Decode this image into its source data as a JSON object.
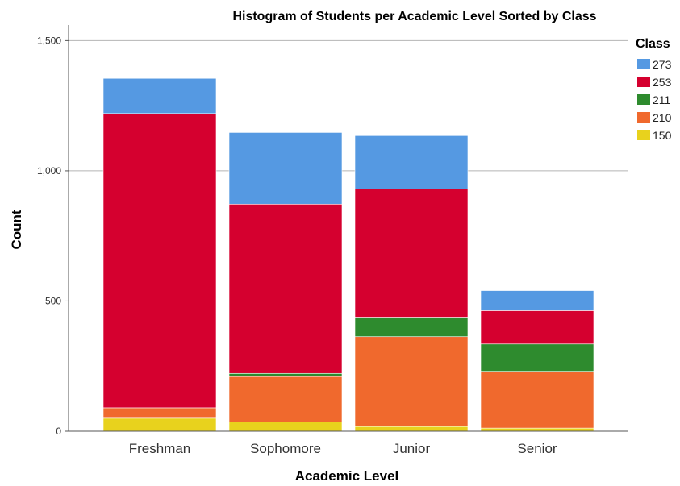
{
  "chart_data": {
    "type": "bar",
    "stacked": true,
    "title": "Histogram of Students per Academic Level Sorted by Class",
    "xlabel": "Academic Level",
    "ylabel": "Count",
    "categories": [
      "Freshman",
      "Sophomore",
      "Junior",
      "Senior"
    ],
    "ylim": [
      0,
      1500
    ],
    "yticks": [
      0,
      500,
      1000,
      1500
    ],
    "ytick_labels": [
      "0",
      "500",
      "1,000",
      "1,500"
    ],
    "grid": true,
    "legend": {
      "title": "Class",
      "placement": "right"
    },
    "series": [
      {
        "name": "150",
        "color": "#e8d21d",
        "values": [
          50,
          35,
          18,
          12
        ]
      },
      {
        "name": "210",
        "color": "#f0692d",
        "values": [
          40,
          175,
          345,
          218
        ]
      },
      {
        "name": "211",
        "color": "#2e8b2e",
        "values": [
          0,
          12,
          75,
          105
        ]
      },
      {
        "name": "253",
        "color": "#d5002f",
        "values": [
          1130,
          650,
          492,
          128
        ]
      },
      {
        "name": "273",
        "color": "#5599e2",
        "values": [
          135,
          275,
          205,
          77
        ]
      }
    ]
  }
}
